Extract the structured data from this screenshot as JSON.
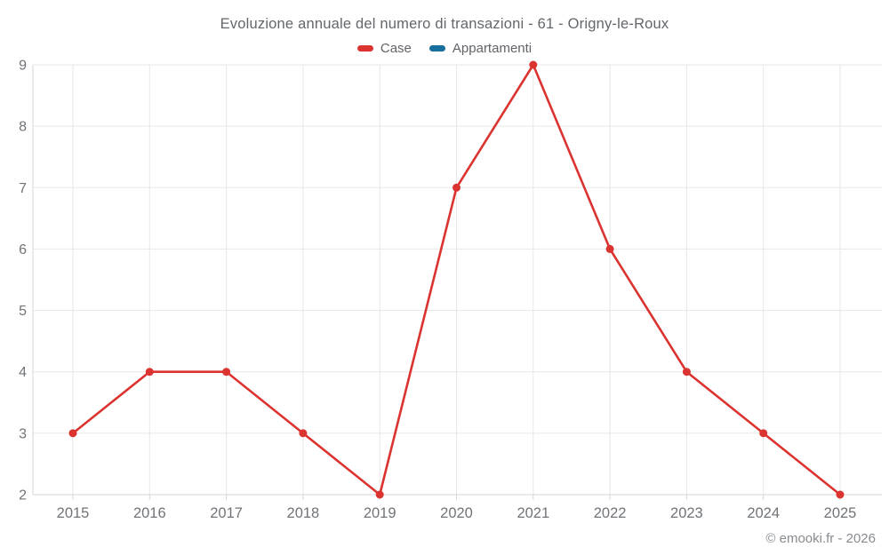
{
  "header": {
    "watermark": "© emooki.fr - 2026"
  },
  "legend": {
    "items": [
      {
        "label": "Case",
        "color": "#db3330"
      },
      {
        "label": "Appartamenti",
        "color": "#176f9e"
      }
    ]
  },
  "chart_data": {
    "type": "line",
    "title": "Evoluzione annuale del numero di transazioni - 61 - Origny-le-Roux",
    "x": [
      2015,
      2016,
      2017,
      2018,
      2019,
      2020,
      2021,
      2022,
      2023,
      2024,
      2025
    ],
    "series": [
      {
        "name": "Case",
        "color": "#db3330",
        "values": [
          3,
          4,
          4,
          3,
          2,
          7,
          9,
          6,
          4,
          3,
          2
        ]
      },
      {
        "name": "Appartamenti",
        "color": "#176f9e",
        "values": []
      }
    ],
    "xlabel": "",
    "ylabel": "",
    "ylim": [
      2,
      9
    ],
    "yticks": [
      2,
      3,
      4,
      5,
      6,
      7,
      8,
      9
    ],
    "grid": true,
    "legend_position": "top"
  },
  "colors": {
    "gridline": "#e7e7e7",
    "axis_line": "#d6d6d6",
    "tick_mark": "#d6d6d6",
    "axis_text": "#707478",
    "title_text": "#63676b",
    "watermark_text": "#888c90",
    "background": "#ffffff"
  }
}
